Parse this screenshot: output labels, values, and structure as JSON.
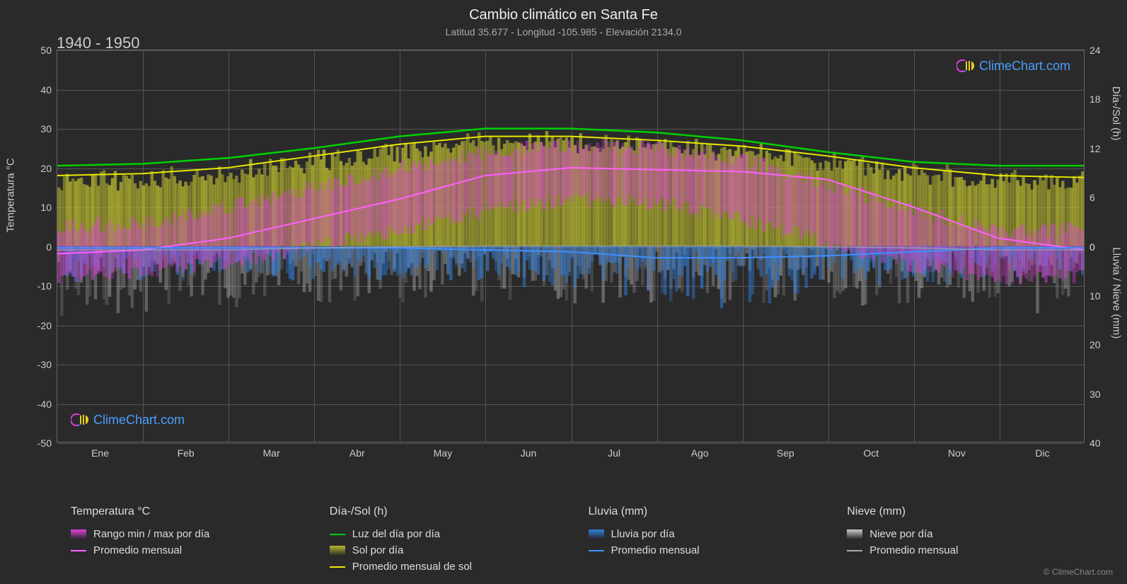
{
  "title": "Cambio climático en Santa Fe",
  "subtitle": "Latitud 35.677 - Longitud -105.985 - Elevación 2134.0",
  "period": "1940 - 1950",
  "logo_text": "ClimeChart.com",
  "copyright": "© ClimeChart.com",
  "colors": {
    "background": "#2a2a2a",
    "grid": "#555555",
    "text": "#cccccc",
    "daylight_line": "#00d000",
    "sun_line": "#e8e800",
    "sun_fill": "#b8b830",
    "temp_range_fill": "#e040e0",
    "temp_avg_line": "#ff60ff",
    "rain_line": "#4090ff",
    "rain_fill": "#3080e0",
    "snow_line": "#aaaaaa",
    "snow_fill": "#cccccc",
    "logo_blue": "#4a9eff",
    "logo_magenta": "#e040e0",
    "logo_yellow": "#e8d020"
  },
  "axes": {
    "left_label": "Temperatura °C",
    "right_top_label": "Día-/Sol (h)",
    "right_bottom_label": "Lluvia / Nieve (mm)",
    "left_ticks": [
      50,
      40,
      30,
      20,
      10,
      0,
      -10,
      -20,
      -30,
      -40,
      -50
    ],
    "right_top_ticks": [
      24,
      18,
      12,
      6,
      0
    ],
    "right_bottom_ticks": [
      0,
      10,
      20,
      30,
      40
    ],
    "months": [
      "Ene",
      "Feb",
      "Mar",
      "Abr",
      "May",
      "Jun",
      "Jul",
      "Ago",
      "Sep",
      "Oct",
      "Nov",
      "Dic"
    ]
  },
  "series": {
    "daylight": [
      20.5,
      21,
      22.5,
      25,
      28,
      30,
      30,
      29,
      27,
      24,
      21.5,
      20.5,
      20.5
    ],
    "sun_avg": [
      18,
      18.5,
      20,
      23,
      26,
      28,
      28,
      27,
      25.5,
      23,
      20,
      18,
      17.5
    ],
    "temp_high": [
      5,
      6,
      10,
      15,
      20,
      24,
      26,
      25,
      22,
      16,
      9,
      4,
      4
    ],
    "temp_low": [
      -8,
      -7,
      -4,
      0,
      4,
      9,
      12,
      11,
      7,
      1,
      -5,
      -8,
      -8
    ],
    "temp_avg": [
      -2,
      -1,
      2,
      7,
      12,
      18,
      20,
      19.5,
      19,
      17,
      10,
      2,
      -1
    ],
    "rain_avg": [
      -0.5,
      -0.5,
      -0.5,
      -0.5,
      -0.5,
      -1,
      -1.5,
      -3,
      -3,
      -2.5,
      -1.5,
      -0.5,
      -0.5
    ],
    "snow_avg": [
      -1,
      -1,
      -1,
      -0.5,
      -0.2,
      0,
      0,
      0,
      0,
      -0.2,
      -0.5,
      -1,
      -1
    ]
  },
  "legend": {
    "col1_header": "Temperatura °C",
    "col1_items": [
      {
        "type": "swatch",
        "color": "#e040e0",
        "gradient": true,
        "label": "Rango min / max por día"
      },
      {
        "type": "line",
        "color": "#ff60ff",
        "label": "Promedio mensual"
      }
    ],
    "col2_header": "Día-/Sol (h)",
    "col2_items": [
      {
        "type": "line",
        "color": "#00d000",
        "label": "Luz del día por día"
      },
      {
        "type": "swatch",
        "color": "#b8b830",
        "gradient": true,
        "label": "Sol por día"
      },
      {
        "type": "line",
        "color": "#e8e800",
        "label": "Promedio mensual de sol"
      }
    ],
    "col3_header": "Lluvia (mm)",
    "col3_items": [
      {
        "type": "swatch",
        "color": "#3080e0",
        "gradient": true,
        "label": "Lluvia por día"
      },
      {
        "type": "line",
        "color": "#4090ff",
        "label": "Promedio mensual"
      }
    ],
    "col4_header": "Nieve (mm)",
    "col4_items": [
      {
        "type": "swatch",
        "color": "#cccccc",
        "gradient": true,
        "label": "Nieve por día"
      },
      {
        "type": "line",
        "color": "#aaaaaa",
        "label": "Promedio mensual"
      }
    ]
  }
}
